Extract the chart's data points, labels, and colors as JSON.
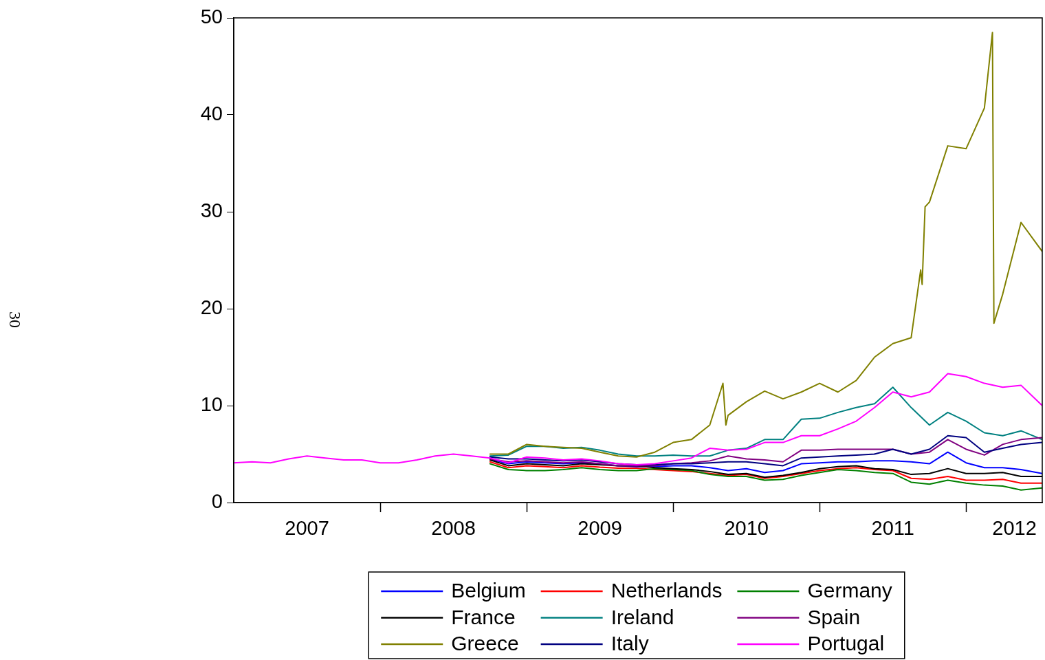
{
  "chart_data": {
    "type": "line",
    "annotations": [
      "30"
    ],
    "x": [
      2007,
      2007.125,
      2007.25,
      2007.375,
      2007.5,
      2007.625,
      2007.75,
      2007.875,
      2008,
      2008.125,
      2008.25,
      2008.375,
      2008.5,
      2008.625,
      2008.75,
      2008.875,
      2009,
      2009.125,
      2009.25,
      2009.375,
      2009.5,
      2009.625,
      2009.75,
      2009.875,
      2010,
      2010.125,
      2010.25,
      2010.375,
      2010.5,
      2010.625,
      2010.75,
      2010.875,
      2011,
      2011.125,
      2011.25,
      2011.375,
      2011.5,
      2011.625,
      2011.75,
      2011.875,
      2012,
      2012.125,
      2012.25,
      2012.375,
      2012.52
    ],
    "xlim": [
      2007,
      2012.52
    ],
    "xticks": [
      {
        "value": 2007.5,
        "label": "2007"
      },
      {
        "value": 2008,
        "label": null
      },
      {
        "value": 2008.5,
        "label": "2008"
      },
      {
        "value": 2009,
        "label": null
      },
      {
        "value": 2009.5,
        "label": "2009"
      },
      {
        "value": 2010,
        "label": null
      },
      {
        "value": 2010.5,
        "label": "2010"
      },
      {
        "value": 2011,
        "label": null
      },
      {
        "value": 2011.5,
        "label": "2011"
      },
      {
        "value": 2012,
        "label": null
      },
      {
        "value": 2012.33,
        "label": "2012"
      }
    ],
    "ylim": [
      0,
      50
    ],
    "yticks": [
      0,
      10,
      20,
      30,
      40,
      50
    ],
    "legend": "bottom",
    "series": [
      {
        "name": "Belgium",
        "color": "#0000ff",
        "values": [
          null,
          null,
          null,
          null,
          null,
          null,
          null,
          null,
          null,
          null,
          null,
          null,
          null,
          null,
          4.5,
          4.0,
          4.2,
          4.1,
          4.0,
          4.1,
          4.0,
          3.8,
          3.7,
          3.7,
          3.8,
          3.8,
          3.6,
          3.3,
          3.5,
          3.1,
          3.3,
          4.0,
          4.1,
          4.2,
          4.2,
          4.3,
          4.3,
          4.2,
          4.0,
          5.2,
          4.1,
          3.6,
          3.6,
          3.4,
          3.0
        ]
      },
      {
        "name": "Netherlands",
        "color": "#ff0000",
        "values": [
          null,
          null,
          null,
          null,
          null,
          null,
          null,
          null,
          null,
          null,
          null,
          null,
          null,
          null,
          4.2,
          3.6,
          3.8,
          3.7,
          3.6,
          3.8,
          3.65,
          3.55,
          3.55,
          3.4,
          3.3,
          3.2,
          3.0,
          2.8,
          2.9,
          2.5,
          2.7,
          3.0,
          3.3,
          3.5,
          3.6,
          3.4,
          3.3,
          2.5,
          2.4,
          2.7,
          2.3,
          2.3,
          2.4,
          2.0,
          2.0
        ]
      },
      {
        "name": "Germany",
        "color": "#008000",
        "values": [
          null,
          null,
          null,
          null,
          null,
          null,
          null,
          null,
          null,
          null,
          null,
          null,
          null,
          null,
          4.0,
          3.4,
          3.3,
          3.3,
          3.4,
          3.6,
          3.4,
          3.3,
          3.3,
          3.5,
          3.4,
          3.3,
          2.9,
          2.7,
          2.7,
          2.3,
          2.4,
          2.8,
          3.1,
          3.4,
          3.3,
          3.1,
          3.0,
          2.1,
          1.9,
          2.3,
          2.0,
          1.8,
          1.7,
          1.3,
          1.5
        ]
      },
      {
        "name": "France",
        "color": "#000000",
        "values": [
          null,
          null,
          null,
          null,
          null,
          null,
          null,
          null,
          null,
          null,
          null,
          null,
          null,
          null,
          4.4,
          3.8,
          4.0,
          3.9,
          3.8,
          4.0,
          3.9,
          3.8,
          3.8,
          3.6,
          3.5,
          3.4,
          3.2,
          2.9,
          3.0,
          2.6,
          2.8,
          3.1,
          3.5,
          3.7,
          3.8,
          3.5,
          3.4,
          2.9,
          3.0,
          3.5,
          3.0,
          3.0,
          3.1,
          2.7,
          2.7
        ]
      },
      {
        "name": "Ireland",
        "color": "#008080",
        "values": [
          null,
          null,
          null,
          null,
          null,
          null,
          null,
          null,
          null,
          null,
          null,
          null,
          null,
          null,
          4.8,
          4.9,
          5.8,
          5.8,
          5.6,
          5.7,
          5.4,
          5.0,
          4.8,
          4.8,
          4.9,
          4.8,
          4.8,
          5.4,
          5.6,
          6.5,
          6.5,
          8.6,
          8.7,
          9.3,
          9.8,
          10.2,
          11.9,
          9.8,
          8.0,
          9.3,
          8.4,
          7.2,
          6.9,
          7.4,
          6.5
        ]
      },
      {
        "name": "Spain",
        "color": "#800080",
        "values": [
          null,
          null,
          null,
          null,
          null,
          null,
          null,
          null,
          null,
          null,
          null,
          null,
          null,
          null,
          4.5,
          4.2,
          4.3,
          4.2,
          4.1,
          4.2,
          4.0,
          3.8,
          3.8,
          3.8,
          4.0,
          4.1,
          4.3,
          4.8,
          4.5,
          4.4,
          4.2,
          5.4,
          5.4,
          5.5,
          5.5,
          5.5,
          5.5,
          5.0,
          5.2,
          6.5,
          5.5,
          4.9,
          6.0,
          6.5,
          6.7
        ]
      },
      {
        "name": "Greece",
        "color": "#808000",
        "x": [
          2008.75,
          2008.875,
          2009,
          2009.125,
          2009.25,
          2009.375,
          2009.5,
          2009.625,
          2009.75,
          2009.875,
          2010,
          2010.125,
          2010.25,
          2010.34,
          2010.36,
          2010.375,
          2010.5,
          2010.625,
          2010.75,
          2010.875,
          2011,
          2011.125,
          2011.25,
          2011.375,
          2011.5,
          2011.625,
          2011.69,
          2011.7,
          2011.72,
          2011.75,
          2011.875,
          2012,
          2012.125,
          2012.18,
          2012.19,
          2012.25,
          2012.375,
          2012.52
        ],
        "values": [
          5.0,
          5.0,
          6.0,
          5.8,
          5.7,
          5.6,
          5.2,
          4.8,
          4.7,
          5.2,
          6.2,
          6.5,
          8.0,
          12.3,
          8.0,
          9.0,
          10.4,
          11.5,
          10.7,
          11.4,
          12.3,
          11.4,
          12.6,
          15.0,
          16.4,
          17.0,
          24.0,
          22.5,
          30.5,
          31.0,
          36.8,
          36.5,
          40.7,
          48.5,
          18.5,
          21.5,
          28.9,
          25.9
        ]
      },
      {
        "name": "Italy",
        "color": "#000080",
        "values": [
          null,
          null,
          null,
          null,
          null,
          null,
          null,
          null,
          null,
          null,
          null,
          null,
          null,
          null,
          4.7,
          4.5,
          4.5,
          4.4,
          4.3,
          4.4,
          4.2,
          4.0,
          3.9,
          3.9,
          4.0,
          4.0,
          4.1,
          4.2,
          4.2,
          4.0,
          3.8,
          4.6,
          4.7,
          4.8,
          4.9,
          5.0,
          5.5,
          5.0,
          5.5,
          6.9,
          6.7,
          5.2,
          5.6,
          6.0,
          6.2
        ]
      },
      {
        "name": "Portugal",
        "color": "#ff00ff",
        "values": [
          4.1,
          4.2,
          4.1,
          4.5,
          4.8,
          4.6,
          4.4,
          4.4,
          4.1,
          4.1,
          4.4,
          4.8,
          5.0,
          4.8,
          4.6,
          4.1,
          4.7,
          4.6,
          4.4,
          4.5,
          4.3,
          4.0,
          3.9,
          4.0,
          4.3,
          4.6,
          5.6,
          5.4,
          5.5,
          6.2,
          6.2,
          6.9,
          6.9,
          7.6,
          8.4,
          9.8,
          11.4,
          10.9,
          11.4,
          13.3,
          13.0,
          12.3,
          11.9,
          12.1,
          10.0
        ]
      }
    ]
  }
}
